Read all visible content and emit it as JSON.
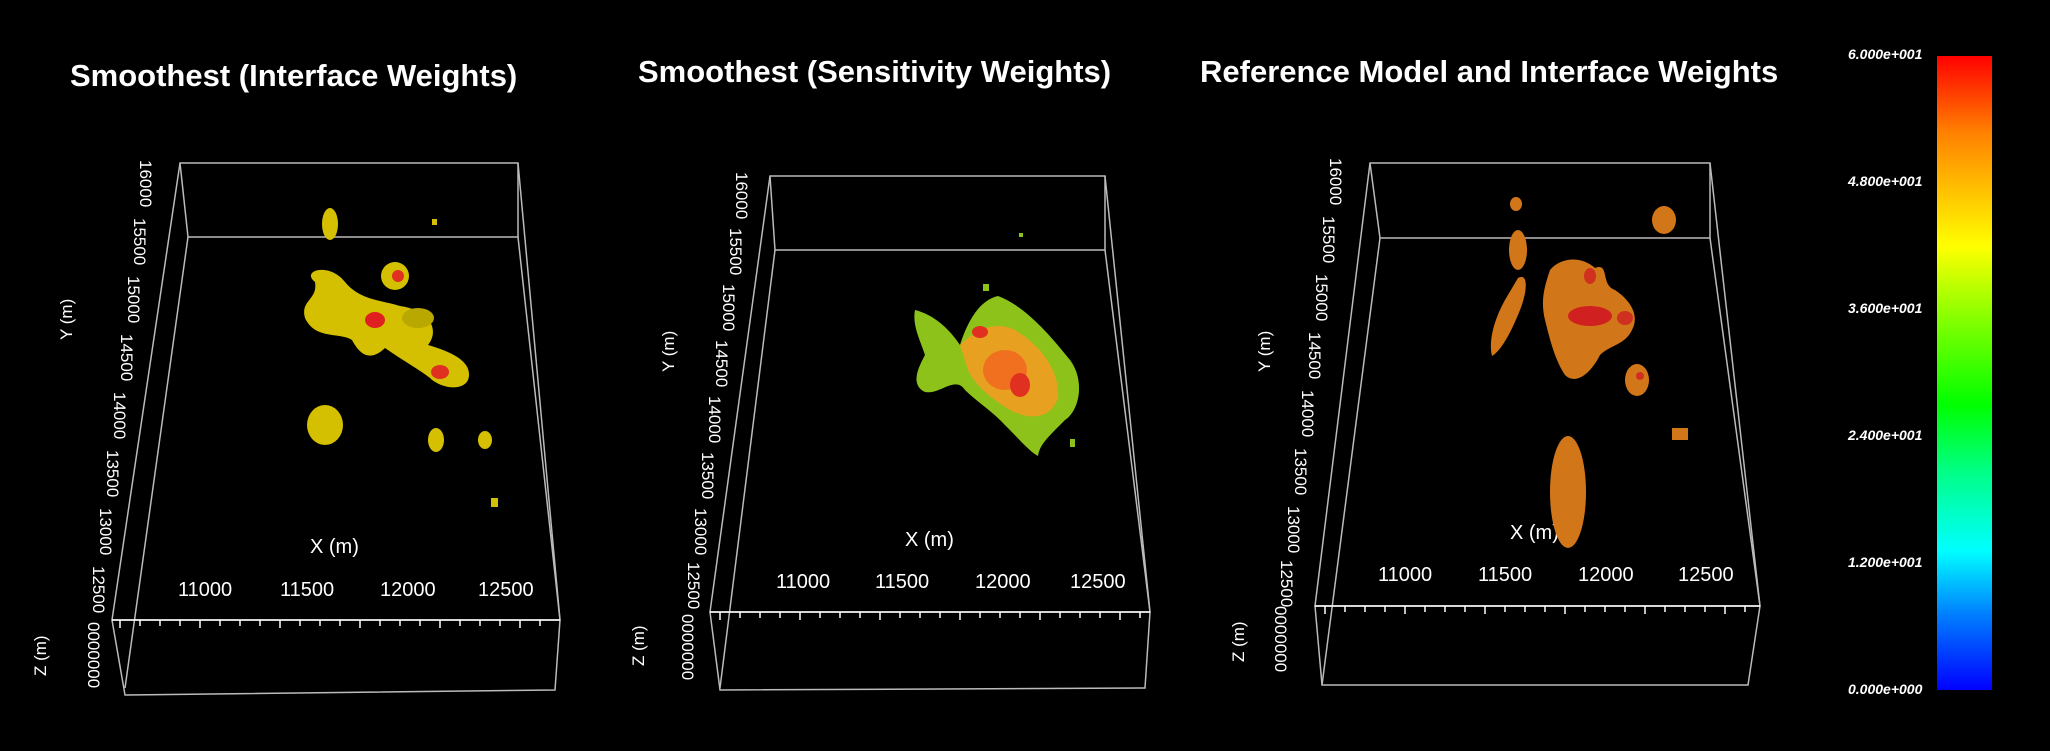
{
  "panels": [
    {
      "title": "Smoothest (Interface Weights)",
      "x_axis_label": "X (m)",
      "y_axis_label": "Y (m)",
      "z_axis_label": "Z (m)",
      "x_ticks": [
        "11000",
        "11500",
        "12000",
        "12500"
      ],
      "y_ticks": [
        "16000",
        "15500",
        "15000",
        "14500",
        "14000",
        "13500",
        "13000",
        "12500"
      ],
      "z_ticks": [
        "0000000"
      ],
      "body_color": "#d4c000"
    },
    {
      "title": "Smoothest (Sensitivity Weights)",
      "x_axis_label": "X (m)",
      "y_axis_label": "Y (m)",
      "z_axis_label": "Z (m)",
      "x_ticks": [
        "11000",
        "11500",
        "12000",
        "12500"
      ],
      "y_ticks": [
        "16000",
        "15500",
        "15000",
        "14500",
        "14000",
        "13500",
        "13000",
        "12500"
      ],
      "z_ticks": [
        "0000000"
      ],
      "body_color": "#8cc21a"
    },
    {
      "title": "Reference Model and Interface Weights",
      "x_axis_label": "X (m)",
      "y_axis_label": "Y (m)",
      "z_axis_label": "Z (m)",
      "x_ticks": [
        "11000",
        "11500",
        "12000",
        "12500"
      ],
      "y_ticks": [
        "16000",
        "15500",
        "15000",
        "14500",
        "14000",
        "13500",
        "13000",
        "12500"
      ],
      "z_ticks": [
        "0000000"
      ],
      "body_color": "#d2761a"
    }
  ],
  "colorbar": {
    "labels": [
      "6.000e+001",
      "4.800e+001",
      "3.600e+001",
      "2.400e+001",
      "1.200e+001",
      "0.000e+000"
    ],
    "colors": [
      "#ff0000",
      "#ffff00",
      "#00ff00",
      "#00ffff",
      "#0000ff"
    ]
  }
}
